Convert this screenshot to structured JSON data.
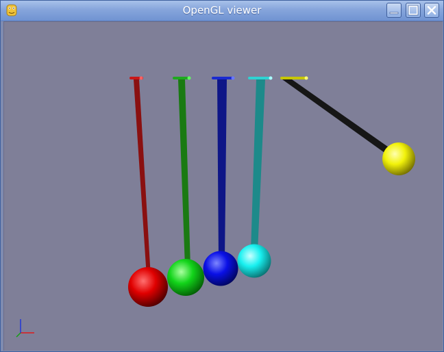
{
  "window": {
    "title": "OpenGL viewer",
    "app_icon": "python-icon",
    "controls": [
      "minimize-icon",
      "maximize-icon",
      "close-icon"
    ]
  },
  "scene": {
    "background_color": "#7f7f98",
    "pendulums": [
      {
        "name": "red",
        "color": "#e00000",
        "rod_color": "#8a1010",
        "pivot_color": "#c81818"
      },
      {
        "name": "green",
        "color": "#12d41a",
        "rod_color": "#1a7a12",
        "pivot_color": "#1fa91f"
      },
      {
        "name": "blue",
        "color": "#0a10e6",
        "rod_color": "#0e1687",
        "pivot_color": "#1a2ad0"
      },
      {
        "name": "cyan",
        "color": "#18f0f0",
        "rod_color": "#1d8a8a",
        "pivot_color": "#2fd2d2"
      },
      {
        "name": "yellow",
        "color": "#f2f20a",
        "rod_color": "#161616",
        "pivot_color": "#c7c600"
      }
    ],
    "axes": {
      "x_color": "#dd1a1a",
      "y_color": "#1a30dd",
      "z_color": "#10a010"
    }
  }
}
